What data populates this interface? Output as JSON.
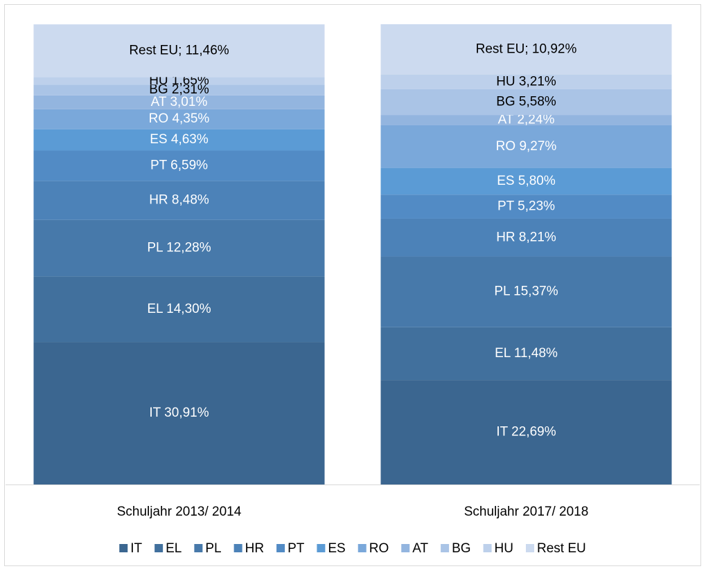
{
  "chart_data": {
    "type": "stacked_bar_100",
    "categories": [
      "Schuljahr 2013/ 2014",
      "Schuljahr 2017/ 2018"
    ],
    "ylim": [
      0,
      100
    ],
    "legend": "bottom",
    "series": [
      {
        "name": "IT",
        "color": "#3b6690",
        "label_color": "#ffffff",
        "values": [
          30.91,
          22.69
        ],
        "value_labels": [
          "IT 30,91%",
          "IT 22,69%"
        ]
      },
      {
        "name": "EL",
        "color": "#41709d",
        "label_color": "#ffffff",
        "values": [
          14.3,
          11.48
        ],
        "value_labels": [
          "EL 14,30%",
          "EL 11,48%"
        ]
      },
      {
        "name": "PL",
        "color": "#4779aa",
        "label_color": "#ffffff",
        "values": [
          12.28,
          15.37
        ],
        "value_labels": [
          "PL 12,28%",
          "PL 15,37%"
        ]
      },
      {
        "name": "HR",
        "color": "#4c82b8",
        "label_color": "#ffffff",
        "values": [
          8.48,
          8.21
        ],
        "value_labels": [
          "HR 8,48%",
          "HR 8,21%"
        ]
      },
      {
        "name": "PT",
        "color": "#528bc5",
        "label_color": "#ffffff",
        "values": [
          6.59,
          5.23
        ],
        "value_labels": [
          "PT 6,59%",
          "PT 5,23%"
        ]
      },
      {
        "name": "ES",
        "color": "#5b9bd5",
        "label_color": "#ffffff",
        "values": [
          4.63,
          5.8
        ],
        "value_labels": [
          "ES 4,63%",
          "ES 5,80%"
        ]
      },
      {
        "name": "RO",
        "color": "#7aa8da",
        "label_color": "#ffffff",
        "values": [
          4.35,
          9.27
        ],
        "value_labels": [
          "RO 4,35%",
          "RO 9,27%"
        ]
      },
      {
        "name": "AT",
        "color": "#93b5df",
        "label_color": "#ffffff",
        "values": [
          3.01,
          2.24
        ],
        "value_labels": [
          "AT 3,01%",
          "AT 2,24%"
        ]
      },
      {
        "name": "BG",
        "color": "#aac4e6",
        "label_color": "#000000",
        "values": [
          2.31,
          5.58
        ],
        "value_labels": [
          "BG 2,31%",
          "BG 5,58%"
        ]
      },
      {
        "name": "HU",
        "color": "#bdd0eb",
        "label_color": "#000000",
        "values": [
          1.65,
          3.21
        ],
        "value_labels": [
          "HU 1,65%",
          "HU 3,21%"
        ]
      },
      {
        "name": "Rest EU",
        "color": "#ccdaef",
        "label_color": "#000000",
        "values": [
          11.46,
          10.92
        ],
        "value_labels": [
          "Rest EU; 11,46%",
          "Rest EU; 10,92%"
        ]
      }
    ]
  }
}
